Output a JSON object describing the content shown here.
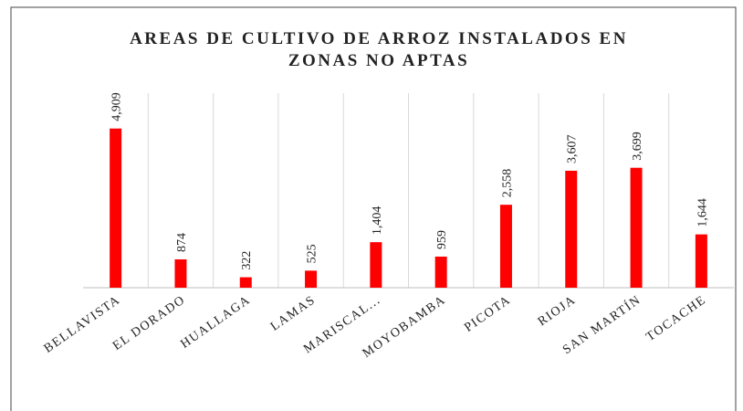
{
  "chart_data": {
    "type": "bar",
    "title": [
      "AREAS DE CULTIVO DE ARROZ INSTALADOS EN",
      "ZONAS NO APTAS"
    ],
    "categories": [
      "BELLAVISTA",
      "EL DORADO",
      "HUALLAGA",
      "LAMAS",
      "MARISCAL...",
      "MOYOBAMBA",
      "PICOTA",
      "RIOJA",
      "SAN MARTÍN",
      "TOCACHE"
    ],
    "values": [
      4909,
      874,
      322,
      525,
      1404,
      959,
      2558,
      3607,
      3699,
      1644
    ],
    "value_labels": [
      "4,909",
      "874",
      "322",
      "525",
      "1,404",
      "959",
      "2,558",
      "3,607",
      "3,699",
      "1,644"
    ],
    "color": "#ff0000",
    "ylim": [
      0,
      6000
    ],
    "grid": true
  }
}
